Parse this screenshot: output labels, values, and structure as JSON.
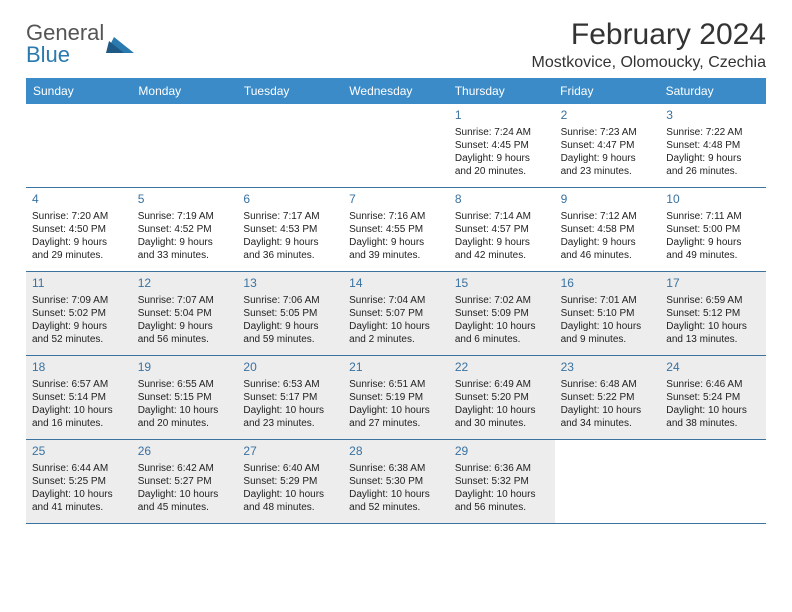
{
  "logo": {
    "line1": "General",
    "line2": "Blue"
  },
  "title": "February 2024",
  "location": "Mostkovice, Olomoucky, Czechia",
  "header_bg": "#3a8bc8",
  "day_headers": [
    "Sunday",
    "Monday",
    "Tuesday",
    "Wednesday",
    "Thursday",
    "Friday",
    "Saturday"
  ],
  "weeks": [
    [
      {
        "n": "",
        "sr": "",
        "ss": "",
        "d1": "",
        "d2": "",
        "shaded": false,
        "empty": true
      },
      {
        "n": "",
        "sr": "",
        "ss": "",
        "d1": "",
        "d2": "",
        "shaded": false,
        "empty": true
      },
      {
        "n": "",
        "sr": "",
        "ss": "",
        "d1": "",
        "d2": "",
        "shaded": false,
        "empty": true
      },
      {
        "n": "",
        "sr": "",
        "ss": "",
        "d1": "",
        "d2": "",
        "shaded": false,
        "empty": true
      },
      {
        "n": "1",
        "sr": "Sunrise: 7:24 AM",
        "ss": "Sunset: 4:45 PM",
        "d1": "Daylight: 9 hours",
        "d2": "and 20 minutes.",
        "shaded": false
      },
      {
        "n": "2",
        "sr": "Sunrise: 7:23 AM",
        "ss": "Sunset: 4:47 PM",
        "d1": "Daylight: 9 hours",
        "d2": "and 23 minutes.",
        "shaded": false
      },
      {
        "n": "3",
        "sr": "Sunrise: 7:22 AM",
        "ss": "Sunset: 4:48 PM",
        "d1": "Daylight: 9 hours",
        "d2": "and 26 minutes.",
        "shaded": false
      }
    ],
    [
      {
        "n": "4",
        "sr": "Sunrise: 7:20 AM",
        "ss": "Sunset: 4:50 PM",
        "d1": "Daylight: 9 hours",
        "d2": "and 29 minutes.",
        "shaded": false
      },
      {
        "n": "5",
        "sr": "Sunrise: 7:19 AM",
        "ss": "Sunset: 4:52 PM",
        "d1": "Daylight: 9 hours",
        "d2": "and 33 minutes.",
        "shaded": false
      },
      {
        "n": "6",
        "sr": "Sunrise: 7:17 AM",
        "ss": "Sunset: 4:53 PM",
        "d1": "Daylight: 9 hours",
        "d2": "and 36 minutes.",
        "shaded": false
      },
      {
        "n": "7",
        "sr": "Sunrise: 7:16 AM",
        "ss": "Sunset: 4:55 PM",
        "d1": "Daylight: 9 hours",
        "d2": "and 39 minutes.",
        "shaded": false
      },
      {
        "n": "8",
        "sr": "Sunrise: 7:14 AM",
        "ss": "Sunset: 4:57 PM",
        "d1": "Daylight: 9 hours",
        "d2": "and 42 minutes.",
        "shaded": false
      },
      {
        "n": "9",
        "sr": "Sunrise: 7:12 AM",
        "ss": "Sunset: 4:58 PM",
        "d1": "Daylight: 9 hours",
        "d2": "and 46 minutes.",
        "shaded": false
      },
      {
        "n": "10",
        "sr": "Sunrise: 7:11 AM",
        "ss": "Sunset: 5:00 PM",
        "d1": "Daylight: 9 hours",
        "d2": "and 49 minutes.",
        "shaded": false
      }
    ],
    [
      {
        "n": "11",
        "sr": "Sunrise: 7:09 AM",
        "ss": "Sunset: 5:02 PM",
        "d1": "Daylight: 9 hours",
        "d2": "and 52 minutes.",
        "shaded": true
      },
      {
        "n": "12",
        "sr": "Sunrise: 7:07 AM",
        "ss": "Sunset: 5:04 PM",
        "d1": "Daylight: 9 hours",
        "d2": "and 56 minutes.",
        "shaded": true
      },
      {
        "n": "13",
        "sr": "Sunrise: 7:06 AM",
        "ss": "Sunset: 5:05 PM",
        "d1": "Daylight: 9 hours",
        "d2": "and 59 minutes.",
        "shaded": true
      },
      {
        "n": "14",
        "sr": "Sunrise: 7:04 AM",
        "ss": "Sunset: 5:07 PM",
        "d1": "Daylight: 10 hours",
        "d2": "and 2 minutes.",
        "shaded": true
      },
      {
        "n": "15",
        "sr": "Sunrise: 7:02 AM",
        "ss": "Sunset: 5:09 PM",
        "d1": "Daylight: 10 hours",
        "d2": "and 6 minutes.",
        "shaded": true
      },
      {
        "n": "16",
        "sr": "Sunrise: 7:01 AM",
        "ss": "Sunset: 5:10 PM",
        "d1": "Daylight: 10 hours",
        "d2": "and 9 minutes.",
        "shaded": true
      },
      {
        "n": "17",
        "sr": "Sunrise: 6:59 AM",
        "ss": "Sunset: 5:12 PM",
        "d1": "Daylight: 10 hours",
        "d2": "and 13 minutes.",
        "shaded": true
      }
    ],
    [
      {
        "n": "18",
        "sr": "Sunrise: 6:57 AM",
        "ss": "Sunset: 5:14 PM",
        "d1": "Daylight: 10 hours",
        "d2": "and 16 minutes.",
        "shaded": true
      },
      {
        "n": "19",
        "sr": "Sunrise: 6:55 AM",
        "ss": "Sunset: 5:15 PM",
        "d1": "Daylight: 10 hours",
        "d2": "and 20 minutes.",
        "shaded": true
      },
      {
        "n": "20",
        "sr": "Sunrise: 6:53 AM",
        "ss": "Sunset: 5:17 PM",
        "d1": "Daylight: 10 hours",
        "d2": "and 23 minutes.",
        "shaded": true
      },
      {
        "n": "21",
        "sr": "Sunrise: 6:51 AM",
        "ss": "Sunset: 5:19 PM",
        "d1": "Daylight: 10 hours",
        "d2": "and 27 minutes.",
        "shaded": true
      },
      {
        "n": "22",
        "sr": "Sunrise: 6:49 AM",
        "ss": "Sunset: 5:20 PM",
        "d1": "Daylight: 10 hours",
        "d2": "and 30 minutes.",
        "shaded": true
      },
      {
        "n": "23",
        "sr": "Sunrise: 6:48 AM",
        "ss": "Sunset: 5:22 PM",
        "d1": "Daylight: 10 hours",
        "d2": "and 34 minutes.",
        "shaded": true
      },
      {
        "n": "24",
        "sr": "Sunrise: 6:46 AM",
        "ss": "Sunset: 5:24 PM",
        "d1": "Daylight: 10 hours",
        "d2": "and 38 minutes.",
        "shaded": true
      }
    ],
    [
      {
        "n": "25",
        "sr": "Sunrise: 6:44 AM",
        "ss": "Sunset: 5:25 PM",
        "d1": "Daylight: 10 hours",
        "d2": "and 41 minutes.",
        "shaded": true
      },
      {
        "n": "26",
        "sr": "Sunrise: 6:42 AM",
        "ss": "Sunset: 5:27 PM",
        "d1": "Daylight: 10 hours",
        "d2": "and 45 minutes.",
        "shaded": true
      },
      {
        "n": "27",
        "sr": "Sunrise: 6:40 AM",
        "ss": "Sunset: 5:29 PM",
        "d1": "Daylight: 10 hours",
        "d2": "and 48 minutes.",
        "shaded": true
      },
      {
        "n": "28",
        "sr": "Sunrise: 6:38 AM",
        "ss": "Sunset: 5:30 PM",
        "d1": "Daylight: 10 hours",
        "d2": "and 52 minutes.",
        "shaded": true
      },
      {
        "n": "29",
        "sr": "Sunrise: 6:36 AM",
        "ss": "Sunset: 5:32 PM",
        "d1": "Daylight: 10 hours",
        "d2": "and 56 minutes.",
        "shaded": true
      },
      {
        "n": "",
        "sr": "",
        "ss": "",
        "d1": "",
        "d2": "",
        "shaded": false,
        "empty": true
      },
      {
        "n": "",
        "sr": "",
        "ss": "",
        "d1": "",
        "d2": "",
        "shaded": false,
        "empty": true
      }
    ]
  ]
}
